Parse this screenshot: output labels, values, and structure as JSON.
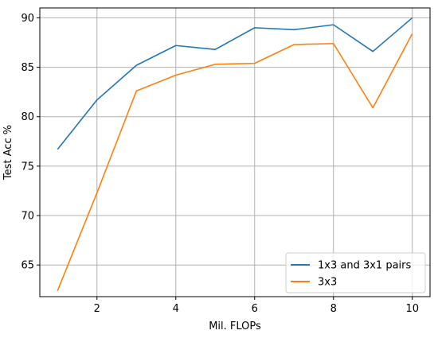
{
  "chart_data": {
    "type": "line",
    "title": "",
    "xlabel": "Mil. FLOPs",
    "ylabel": "Test Acc %",
    "xlim": [
      0.55,
      10.45
    ],
    "ylim": [
      61.8,
      91.0
    ],
    "xticks": [
      2,
      4,
      6,
      8,
      10
    ],
    "yticks": [
      65,
      70,
      75,
      80,
      85,
      90
    ],
    "grid": true,
    "legend_position": "lower-right",
    "x": [
      1,
      2,
      3,
      4,
      5,
      6,
      7,
      8,
      9,
      10
    ],
    "series": [
      {
        "name": "1x3 and 3x1 pairs",
        "color": "#1f77b4",
        "values": [
          76.7,
          81.7,
          85.2,
          87.2,
          86.8,
          89.0,
          88.8,
          89.3,
          86.6,
          90.0
        ]
      },
      {
        "name": "3x3",
        "color": "#ff7f0e",
        "values": [
          62.4,
          72.3,
          82.6,
          84.2,
          85.3,
          85.4,
          87.3,
          87.4,
          80.9,
          88.4
        ]
      }
    ]
  }
}
